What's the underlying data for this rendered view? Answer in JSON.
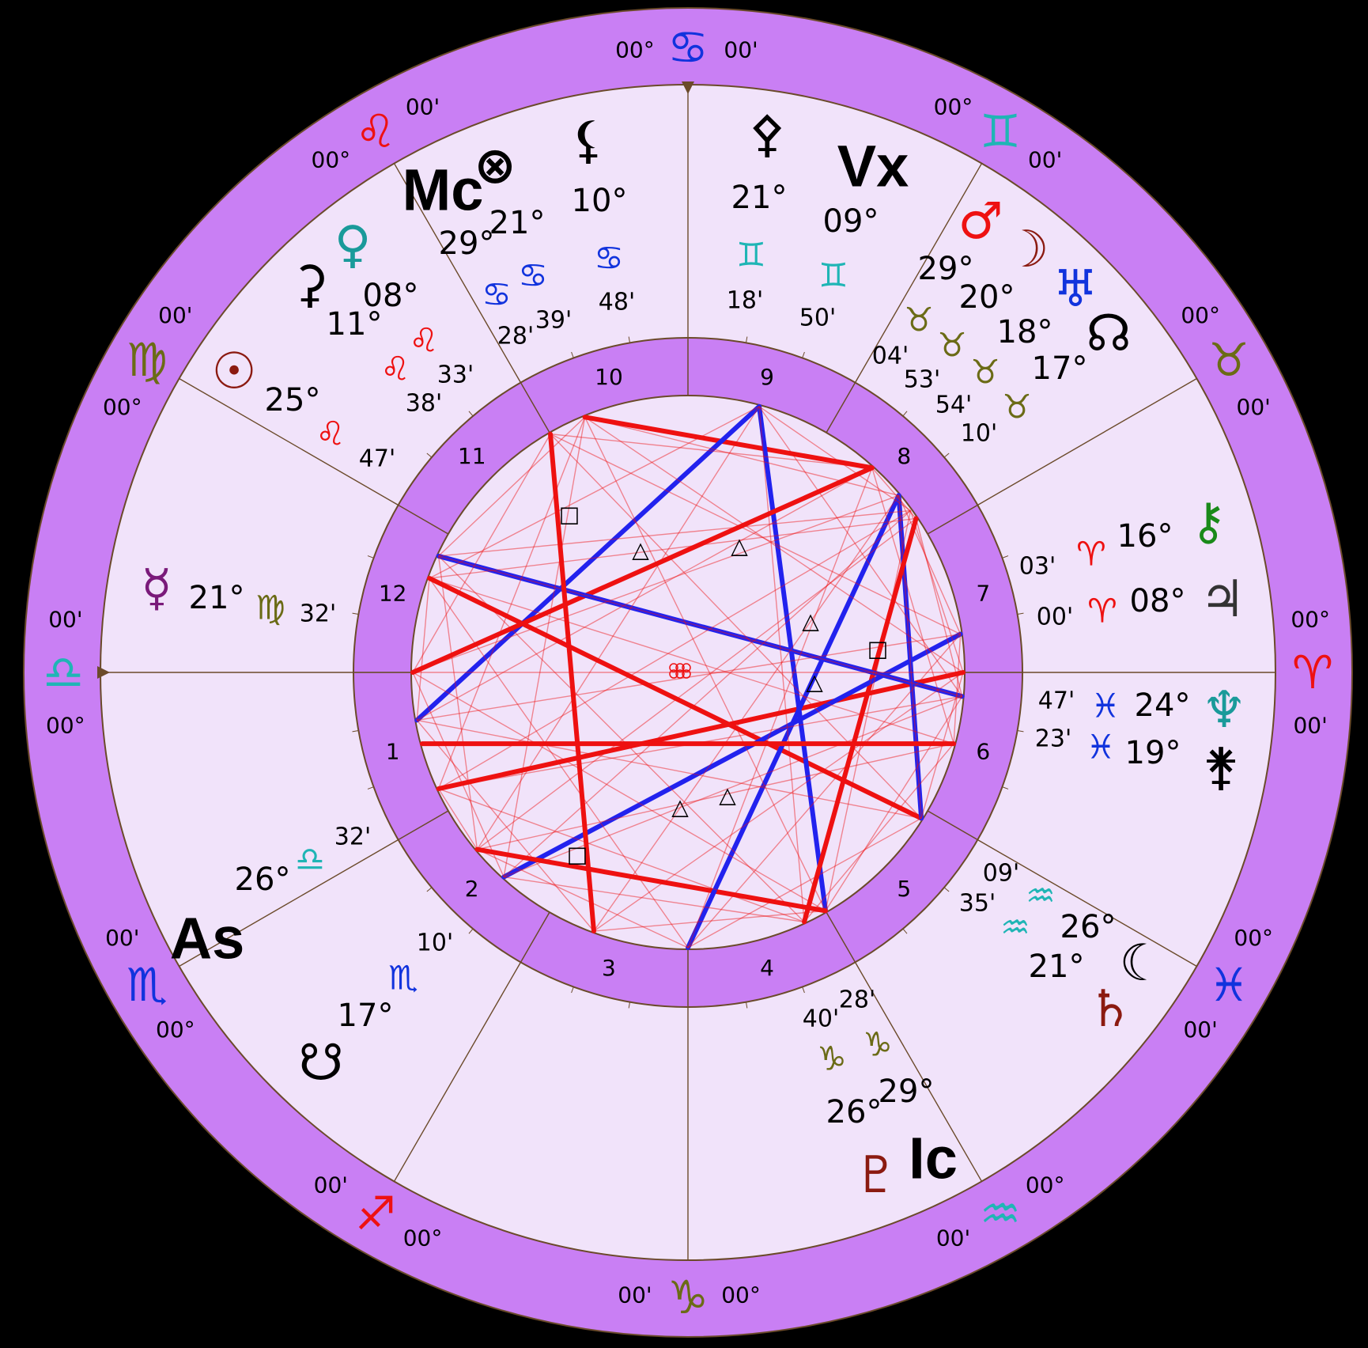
{
  "colors": {
    "background": "#000000",
    "zodiac_ring": "#c97ff4",
    "house_ring": "#c97ff4",
    "field": "#f1e3fa",
    "hard_aspect": "#ee1111",
    "soft_aspect": "#2222ee",
    "divider": "#6b4a2a"
  },
  "zodiac_signs": [
    {
      "name": "Aries",
      "glyph": "♈",
      "color": "#ee1111",
      "deg": "00°",
      "min": "00'"
    },
    {
      "name": "Taurus",
      "glyph": "♉",
      "color": "#6b6b16",
      "deg": "00°",
      "min": "00'"
    },
    {
      "name": "Gemini",
      "glyph": "♊",
      "color": "#1fb5b5",
      "deg": "00°",
      "min": "00'"
    },
    {
      "name": "Cancer",
      "glyph": "♋",
      "color": "#1133dd",
      "deg": "00°",
      "min": "00'"
    },
    {
      "name": "Leo",
      "glyph": "♌",
      "color": "#ee1111",
      "deg": "00°",
      "min": "00'"
    },
    {
      "name": "Virgo",
      "glyph": "♍",
      "color": "#6b6b16",
      "deg": "00°",
      "min": "00'"
    },
    {
      "name": "Libra",
      "glyph": "♎",
      "color": "#1fb5b5",
      "deg": "00°",
      "min": "00'"
    },
    {
      "name": "Scorpio",
      "glyph": "♏",
      "color": "#1133dd",
      "deg": "00°",
      "min": "00'"
    },
    {
      "name": "Sagittarius",
      "glyph": "♐",
      "color": "#ee1111",
      "deg": "00°",
      "min": "00'"
    },
    {
      "name": "Capricorn",
      "glyph": "♑",
      "color": "#6b6b16",
      "deg": "00°",
      "min": "00'"
    },
    {
      "name": "Aquarius",
      "glyph": "♒",
      "color": "#1fb5b5",
      "deg": "00°",
      "min": "00'"
    },
    {
      "name": "Pisces",
      "glyph": "♓",
      "color": "#1133dd",
      "deg": "00°",
      "min": "00'"
    }
  ],
  "houses": [
    "1",
    "2",
    "3",
    "4",
    "5",
    "6",
    "7",
    "8",
    "9",
    "10",
    "11",
    "12"
  ],
  "bodies": [
    {
      "id": "sun",
      "glyph": "☉",
      "color": "#8b1a10",
      "deg": "25°",
      "deg_color": "#000",
      "sign_glyph": "♌",
      "sign_color": "#ee1111",
      "min": "47'",
      "min_color": "#000"
    },
    {
      "id": "venus",
      "glyph": "♀",
      "color": "#1a9a9a",
      "deg": "08°",
      "deg_color": "#000",
      "sign_glyph": "♌",
      "sign_color": "#ee1111",
      "min": "33'",
      "min_color": "#000"
    },
    {
      "id": "ceres",
      "glyph": "⚳",
      "color": "#000",
      "deg": "11°",
      "deg_color": "#000",
      "sign_glyph": "♌",
      "sign_color": "#ee1111",
      "min": "38'",
      "min_color": "#000"
    },
    {
      "id": "part-of-fortune",
      "glyph": "⊗",
      "color": "#000",
      "deg": "21°",
      "deg_color": "#000",
      "sign_glyph": "♋",
      "sign_color": "#1133dd",
      "min": "39'",
      "min_color": "#000"
    },
    {
      "id": "midheaven",
      "glyph": "Mc",
      "color": "#000",
      "deg": "29°",
      "deg_color": "#000",
      "sign_glyph": "♋",
      "sign_color": "#1133dd",
      "min": "28'",
      "min_color": "#000"
    },
    {
      "id": "lilith",
      "glyph": "⚸",
      "color": "#000",
      "deg": "10°",
      "deg_color": "#ee1111",
      "sign_glyph": "♋",
      "sign_color": "#1133dd",
      "min": "48'",
      "min_color": "#ee1111"
    },
    {
      "id": "pallas",
      "glyph": "⚴",
      "color": "#000",
      "deg": "21°",
      "deg_color": "#000",
      "sign_glyph": "♊",
      "sign_color": "#1fb5b5",
      "min": "18'",
      "min_color": "#000"
    },
    {
      "id": "vertex",
      "glyph": "Vx",
      "color": "#000",
      "deg": "09°",
      "deg_color": "#000",
      "sign_glyph": "♊",
      "sign_color": "#1fb5b5",
      "min": "50'",
      "min_color": "#000"
    },
    {
      "id": "mars",
      "glyph": "♂",
      "color": "#ee1111",
      "deg": "29°",
      "deg_color": "#000",
      "sign_glyph": "♉",
      "sign_color": "#6b6b16",
      "min": "04'",
      "min_color": "#000"
    },
    {
      "id": "moon",
      "glyph": "☽",
      "color": "#8b1a10",
      "deg": "20°",
      "deg_color": "#000",
      "sign_glyph": "♉",
      "sign_color": "#6b6b16",
      "min": "53'",
      "min_color": "#000"
    },
    {
      "id": "uranus",
      "glyph": "♅",
      "color": "#1133dd",
      "deg": "18°",
      "deg_color": "#000",
      "sign_glyph": "♉",
      "sign_color": "#6b6b16",
      "min": "54'",
      "min_color": "#000"
    },
    {
      "id": "north-node",
      "glyph": "☊",
      "color": "#000",
      "deg": "17°",
      "deg_color": "#000",
      "sign_glyph": "♉",
      "sign_color": "#6b6b16",
      "min": "10'",
      "min_color": "#000"
    },
    {
      "id": "chiron",
      "glyph": "⚷",
      "color": "#1a8a1a",
      "deg": "16°",
      "deg_color": "#ee1111",
      "sign_glyph": "♈",
      "sign_color": "#ee1111",
      "min": "03'",
      "min_color": "#ee1111"
    },
    {
      "id": "jupiter",
      "glyph": "♃",
      "color": "#333",
      "deg": "08°",
      "deg_color": "#ee1111",
      "sign_glyph": "♈",
      "sign_color": "#ee1111",
      "min": "00'",
      "min_color": "#ee1111"
    },
    {
      "id": "neptune",
      "glyph": "♆",
      "color": "#1a9a9a",
      "deg": "24°",
      "deg_color": "#ee1111",
      "sign_glyph": "♓",
      "sign_color": "#1133dd",
      "min": "47'",
      "min_color": "#ee1111"
    },
    {
      "id": "juno",
      "glyph": "⚵",
      "color": "#000",
      "deg": "19°",
      "deg_color": "#ee1111",
      "sign_glyph": "♓",
      "sign_color": "#1133dd",
      "min": "23'",
      "min_color": "#ee1111"
    },
    {
      "id": "selena",
      "glyph": "☾",
      "color": "#000",
      "deg": "26°",
      "deg_color": "#000",
      "sign_glyph": "♒",
      "sign_color": "#1fb5b5",
      "min": "09'",
      "min_color": "#000"
    },
    {
      "id": "saturn",
      "glyph": "♄",
      "color": "#8b1a10",
      "deg": "21°",
      "deg_color": "#ee1111",
      "sign_glyph": "♒",
      "sign_color": "#1fb5b5",
      "min": "35'",
      "min_color": "#ee1111"
    },
    {
      "id": "imum-coeli",
      "glyph": "Ic",
      "color": "#000",
      "deg": "29°",
      "deg_color": "#000",
      "sign_glyph": "♑",
      "sign_color": "#6b6b16",
      "min": "28'",
      "min_color": "#000"
    },
    {
      "id": "pluto",
      "glyph": "♇",
      "color": "#8b1a10",
      "deg": "26°",
      "deg_color": "#ee1111",
      "sign_glyph": "♑",
      "sign_color": "#6b6b16",
      "min": "40'",
      "min_color": "#ee1111"
    },
    {
      "id": "south-node",
      "glyph": "☋",
      "color": "#000",
      "deg": "17°",
      "deg_color": "#000",
      "sign_glyph": "♏",
      "sign_color": "#1133dd",
      "min": "10'",
      "min_color": "#000"
    },
    {
      "id": "ascendant",
      "glyph": "As",
      "color": "#000",
      "deg": "26°",
      "deg_color": "#000",
      "sign_glyph": "♎",
      "sign_color": "#1fb5b5",
      "min": "32'",
      "min_color": "#000"
    },
    {
      "id": "mercury",
      "glyph": "☿",
      "color": "#7a1a7a",
      "deg": "21°",
      "deg_color": "#000",
      "sign_glyph": "♍",
      "sign_color": "#6b6b16",
      "min": "32'",
      "min_color": "#000"
    }
  ]
}
